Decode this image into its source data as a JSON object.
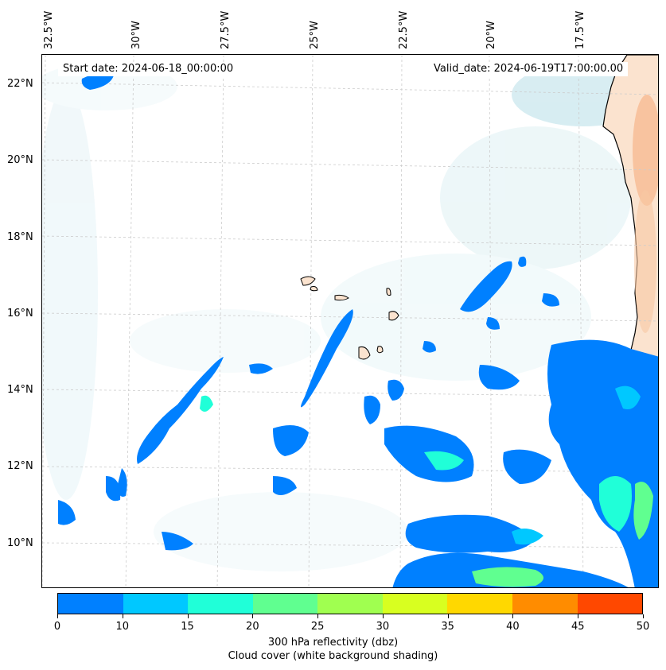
{
  "header": {
    "start_date": "Start date: 2024-06-18_00:00:00",
    "valid_date": "Valid_date: 2024-06-19T17:00:00.00"
  },
  "longitude_labels": [
    "32.5°W",
    "30°W",
    "27.5°W",
    "25°W",
    "22.5°W",
    "20°W",
    "17.5°W"
  ],
  "latitude_labels": [
    "22°N",
    "20°N",
    "18°N",
    "16°N",
    "14°N",
    "12°N",
    "10°N"
  ],
  "colorbar": {
    "ticks": [
      "0",
      "10",
      "15",
      "20",
      "25",
      "30",
      "35",
      "40",
      "45",
      "50"
    ],
    "colors": [
      "#0080ff",
      "#00c8ff",
      "#20ffd8",
      "#60ff90",
      "#a0ff50",
      "#d8ff20",
      "#ffd800",
      "#ff8c00",
      "#ff4800"
    ],
    "label": "300 hPa reflectivity (dbz)",
    "sublabel": "Cloud cover (white background shading)"
  },
  "colors": {
    "land": "#fbe3cf",
    "land_warm": "#f6b58a",
    "cloud": "#d6eef2",
    "coast": "#000000",
    "grid": "#cccccc"
  }
}
